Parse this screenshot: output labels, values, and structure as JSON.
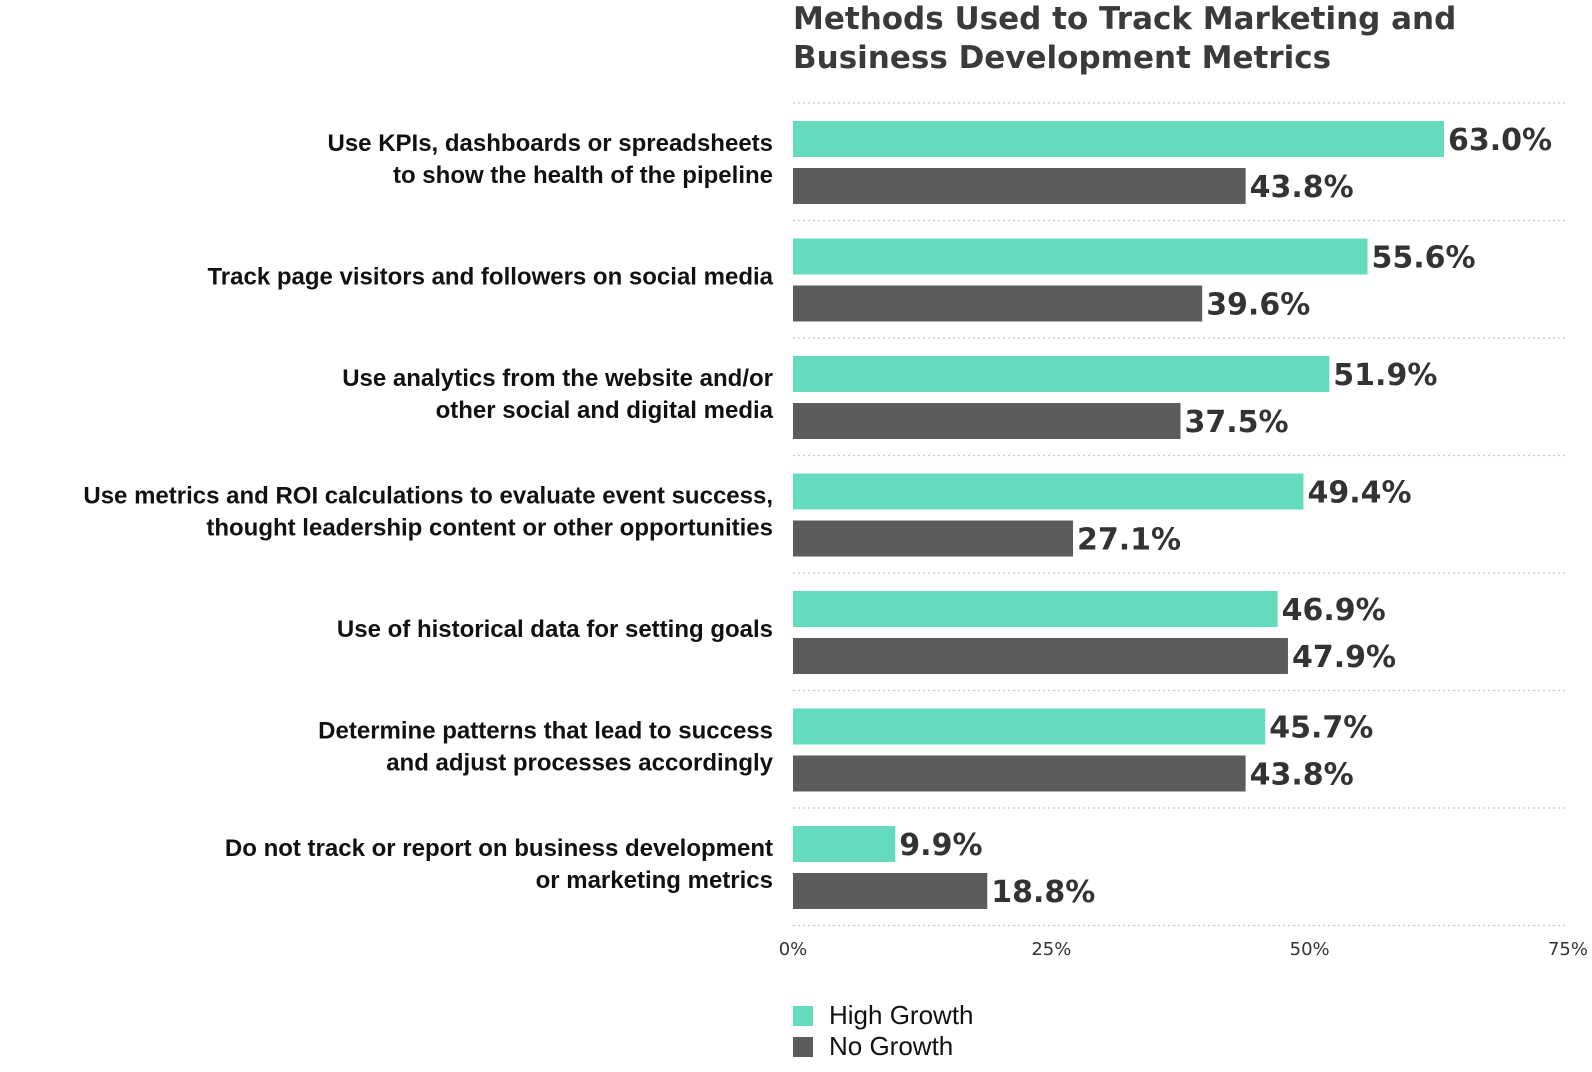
{
  "chart_data": {
    "type": "bar",
    "orientation": "horizontal",
    "title": [
      "Methods Used to Track Marketing and",
      "Business Development Metrics"
    ],
    "categories": [
      [
        "Use KPIs, dashboards or spreadsheets",
        "to show the health of the pipeline"
      ],
      [
        "Track page visitors and followers on social media"
      ],
      [
        "Use analytics from the website and/or",
        "other social and digital media"
      ],
      [
        "Use metrics and ROI calculations to evaluate event success,",
        "thought leadership content or other opportunities"
      ],
      [
        "Use of historical data for setting goals"
      ],
      [
        "Determine patterns that lead to success",
        "and adjust processes accordingly"
      ],
      [
        "Do not track or report on business development",
        "or marketing metrics"
      ]
    ],
    "series": [
      {
        "name": "High Growth",
        "color": "#64dbbf",
        "values": [
          63.0,
          55.6,
          51.9,
          49.4,
          46.9,
          45.7,
          9.9
        ],
        "labels": [
          "63.0%",
          "55.6%",
          "51.9%",
          "49.4%",
          "46.9%",
          "45.7%",
          "9.9%"
        ]
      },
      {
        "name": "No Growth",
        "color": "#5c5c5c",
        "values": [
          43.8,
          39.6,
          37.5,
          27.1,
          47.9,
          43.8,
          18.8
        ],
        "labels": [
          "43.8%",
          "39.6%",
          "37.5%",
          "27.1%",
          "47.9%",
          "43.8%",
          "18.8%"
        ]
      }
    ],
    "xlim": [
      0,
      75
    ],
    "xticks": [
      0,
      25,
      50,
      75
    ],
    "xtick_labels": [
      "0%",
      "25%",
      "50%",
      "75%"
    ],
    "xlabel": "",
    "ylabel": "",
    "grid": true,
    "legend_position": "bottom-left"
  }
}
